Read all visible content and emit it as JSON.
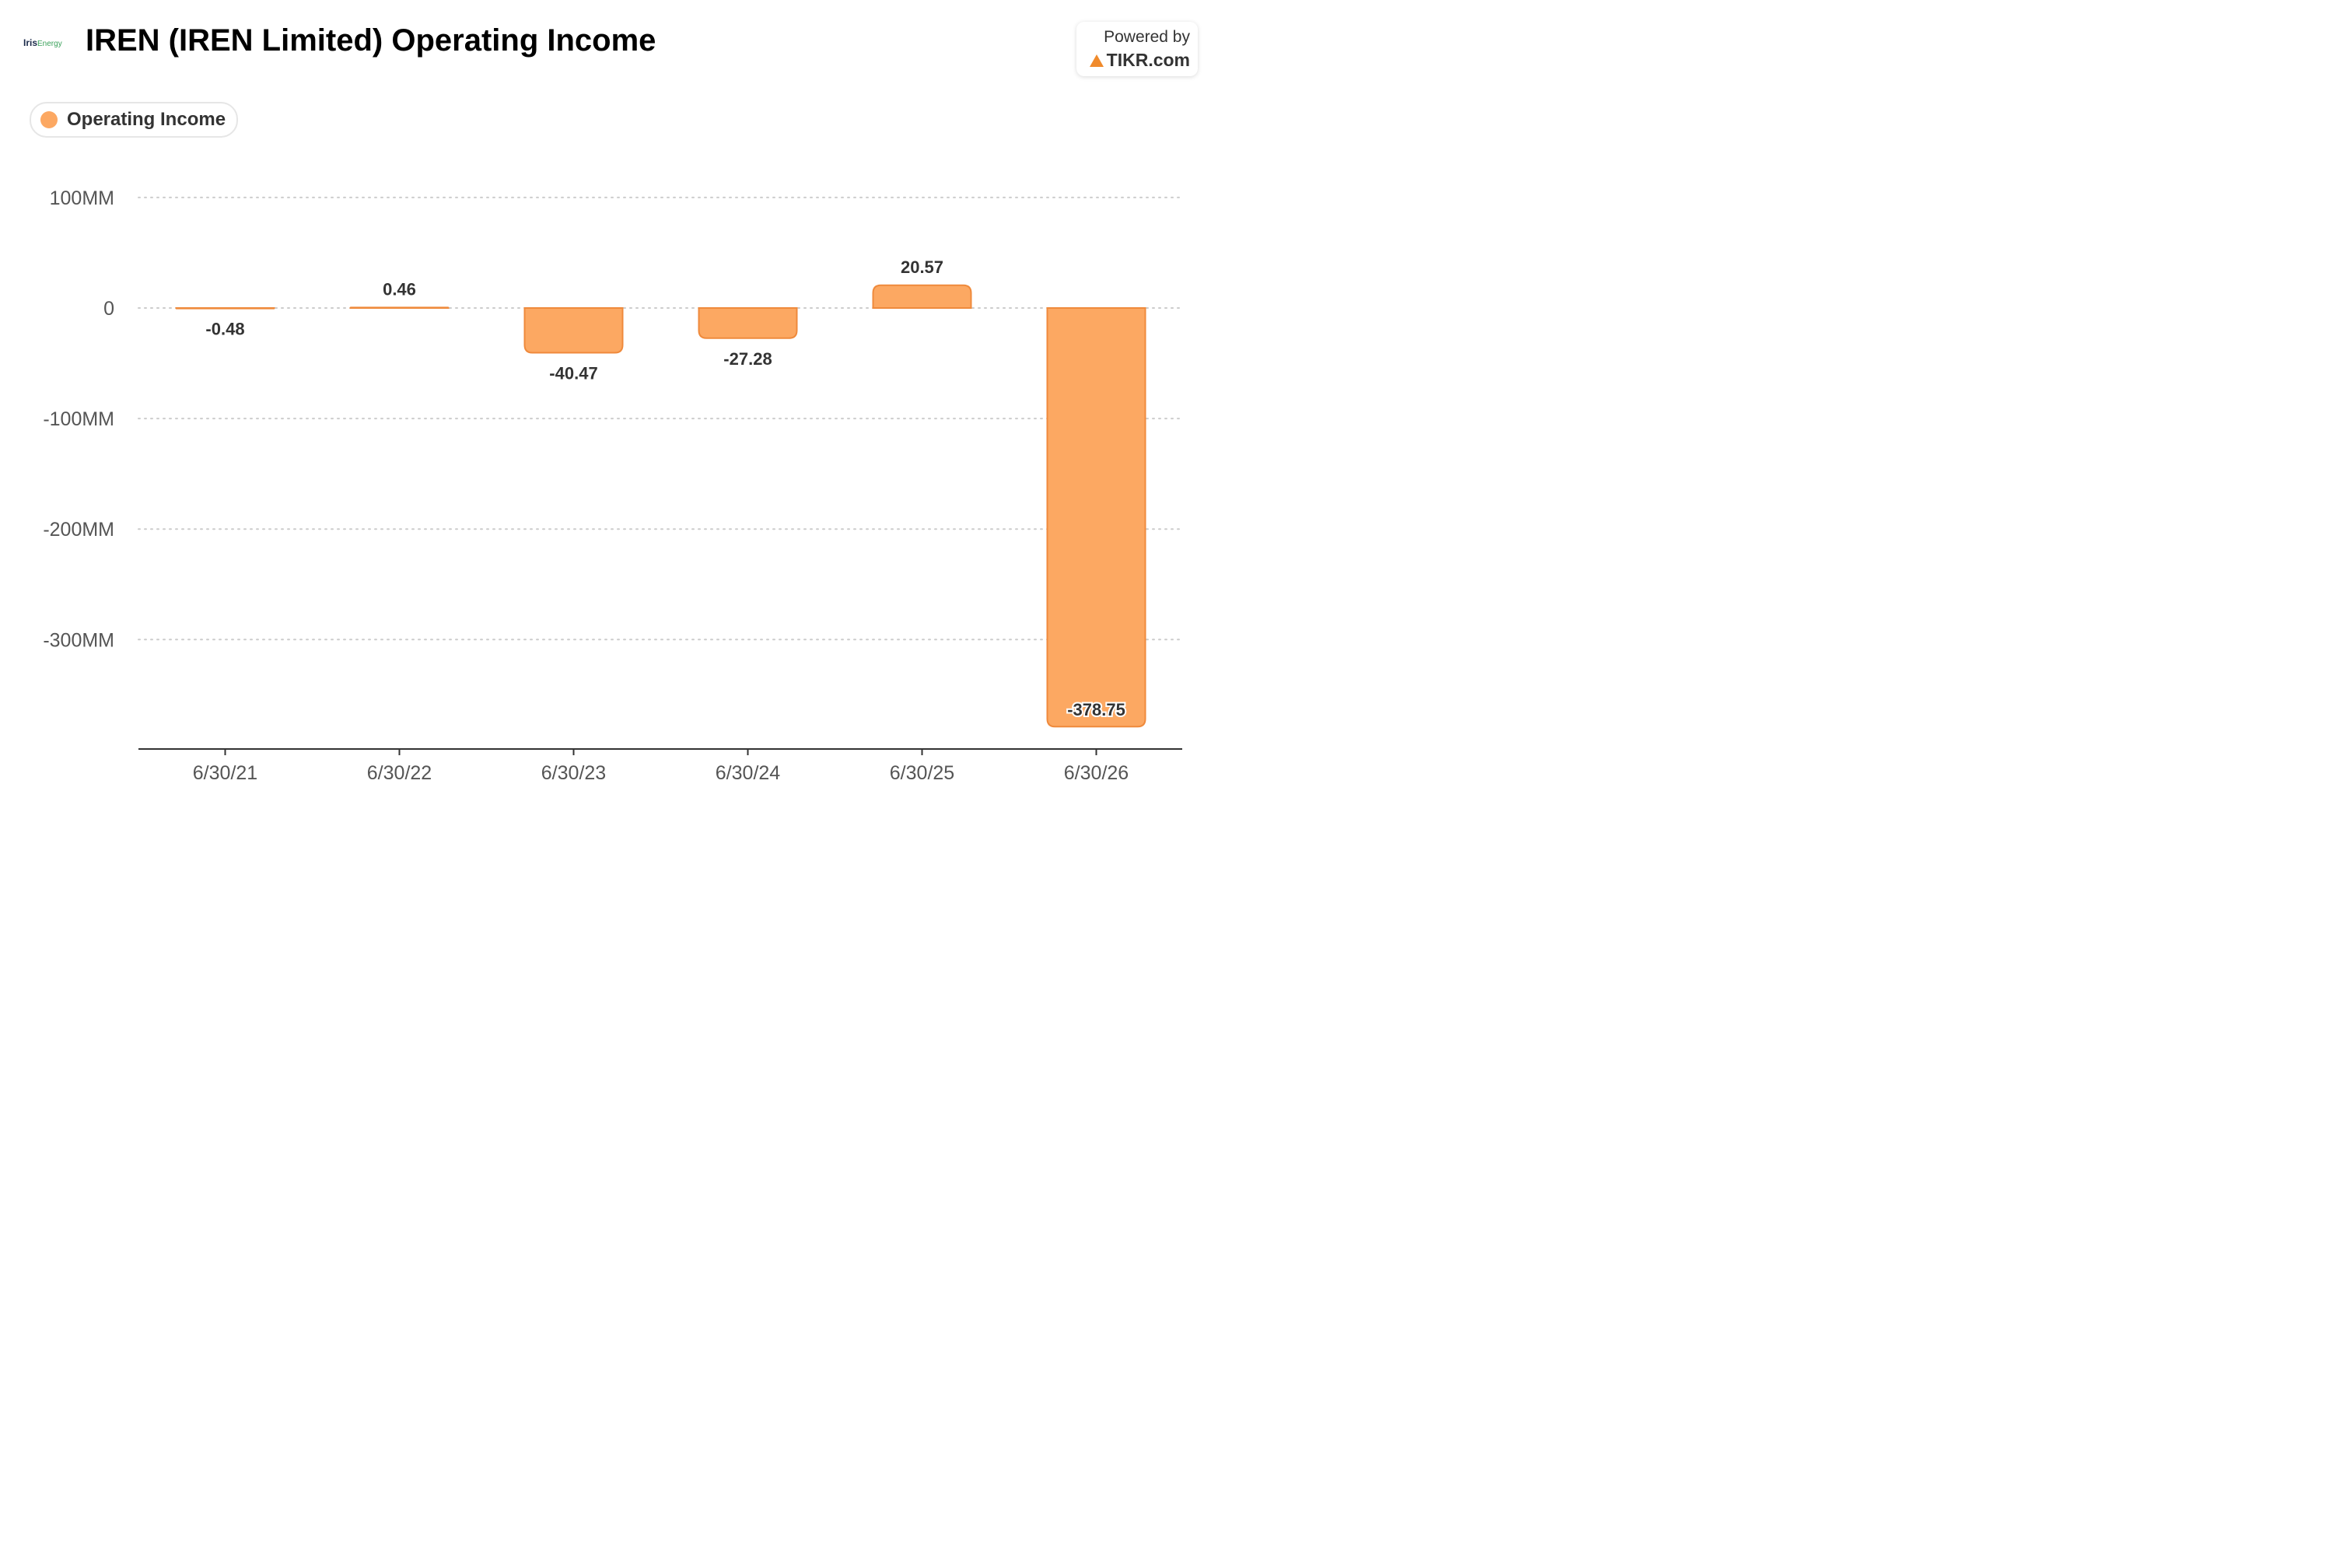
{
  "header": {
    "logo_part1": "Iris",
    "logo_part2": "Energy",
    "title": "IREN (IREN Limited) Operating Income",
    "powered_line1": "Powered by",
    "powered_line2": "TIKR.com"
  },
  "legend": {
    "label": "Operating Income"
  },
  "chart_data": {
    "type": "bar",
    "title": "IREN (IREN Limited) Operating Income",
    "categories": [
      "6/30/21",
      "6/30/22",
      "6/30/23",
      "6/30/24",
      "6/30/25",
      "6/30/26"
    ],
    "series": [
      {
        "name": "Operating Income",
        "values": [
          -0.48,
          0.46,
          -40.47,
          -27.28,
          20.57,
          -378.75
        ]
      }
    ],
    "data_labels": [
      "-0.48",
      "0.46",
      "-40.47",
      "-27.28",
      "20.57",
      "-378.75"
    ],
    "yticks": [
      100,
      0,
      -100,
      -200,
      -300
    ],
    "ytick_labels": [
      "100MM",
      "0",
      "-100MM",
      "-200MM",
      "-300MM"
    ],
    "ylim": [
      -400,
      100
    ],
    "grid": true,
    "legend_position": "top-left",
    "colors": {
      "bar_fill": "#fca862",
      "bar_stroke": "#ef8a3c",
      "label": "#333333",
      "axis": "#333333",
      "grid": "#cccccc"
    }
  }
}
